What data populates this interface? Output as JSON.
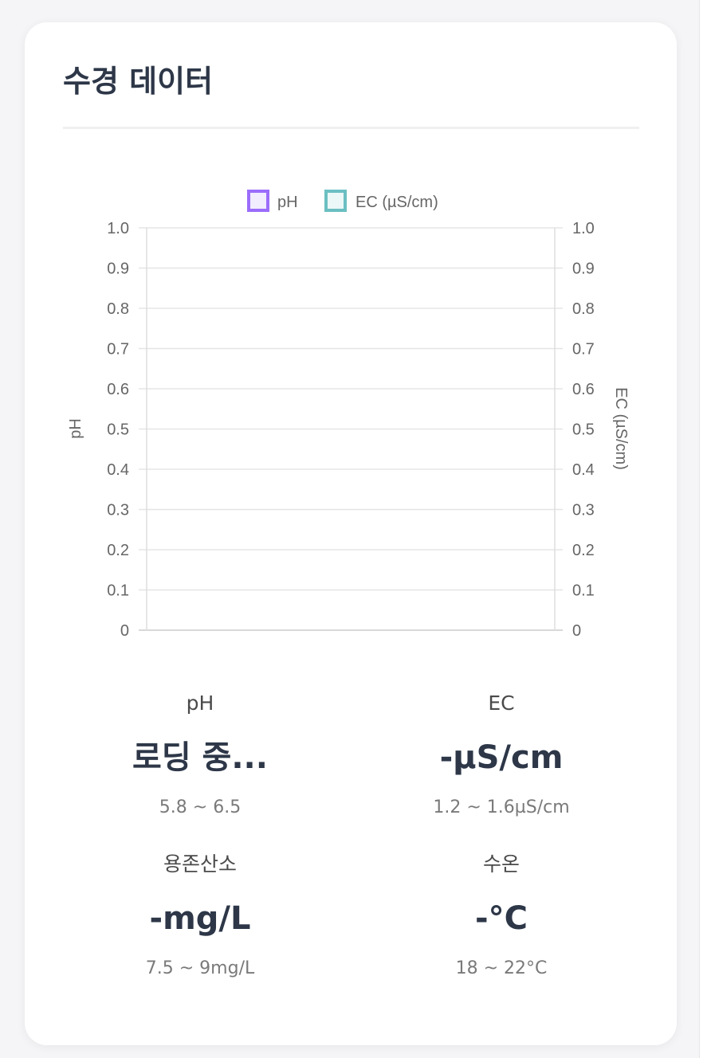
{
  "card": {
    "title": "수경 데이터"
  },
  "chart_data": {
    "type": "line",
    "legend": [
      "pH",
      "EC (µS/cm)"
    ],
    "series": [
      {
        "name": "pH",
        "values": [],
        "color": "#9b6dfb"
      },
      {
        "name": "EC (µS/cm)",
        "values": [],
        "color": "#6bbfc2"
      }
    ],
    "y_left": {
      "label": "pH",
      "ylim": [
        0,
        1.0
      ],
      "ticks": [
        "0",
        "0.1",
        "0.2",
        "0.3",
        "0.4",
        "0.5",
        "0.6",
        "0.7",
        "0.8",
        "0.9",
        "1.0"
      ]
    },
    "y_right": {
      "label": "EC (µS/cm)",
      "ylim": [
        0,
        1.0
      ],
      "ticks": [
        "0",
        "0.1",
        "0.2",
        "0.3",
        "0.4",
        "0.5",
        "0.6",
        "0.7",
        "0.8",
        "0.9",
        "1.0"
      ]
    },
    "grid": true,
    "legend_position": "top"
  },
  "stats": [
    {
      "label": "pH",
      "value": "로딩 중...",
      "range": "5.8 ~ 6.5"
    },
    {
      "label": "EC",
      "value": "-µS/cm",
      "range": "1.2 ~ 1.6µS/cm"
    },
    {
      "label": "용존산소",
      "value": "-mg/L",
      "range": "7.5 ~ 9mg/L"
    },
    {
      "label": "수온",
      "value": "-°C",
      "range": "18 ~ 22°C"
    }
  ]
}
